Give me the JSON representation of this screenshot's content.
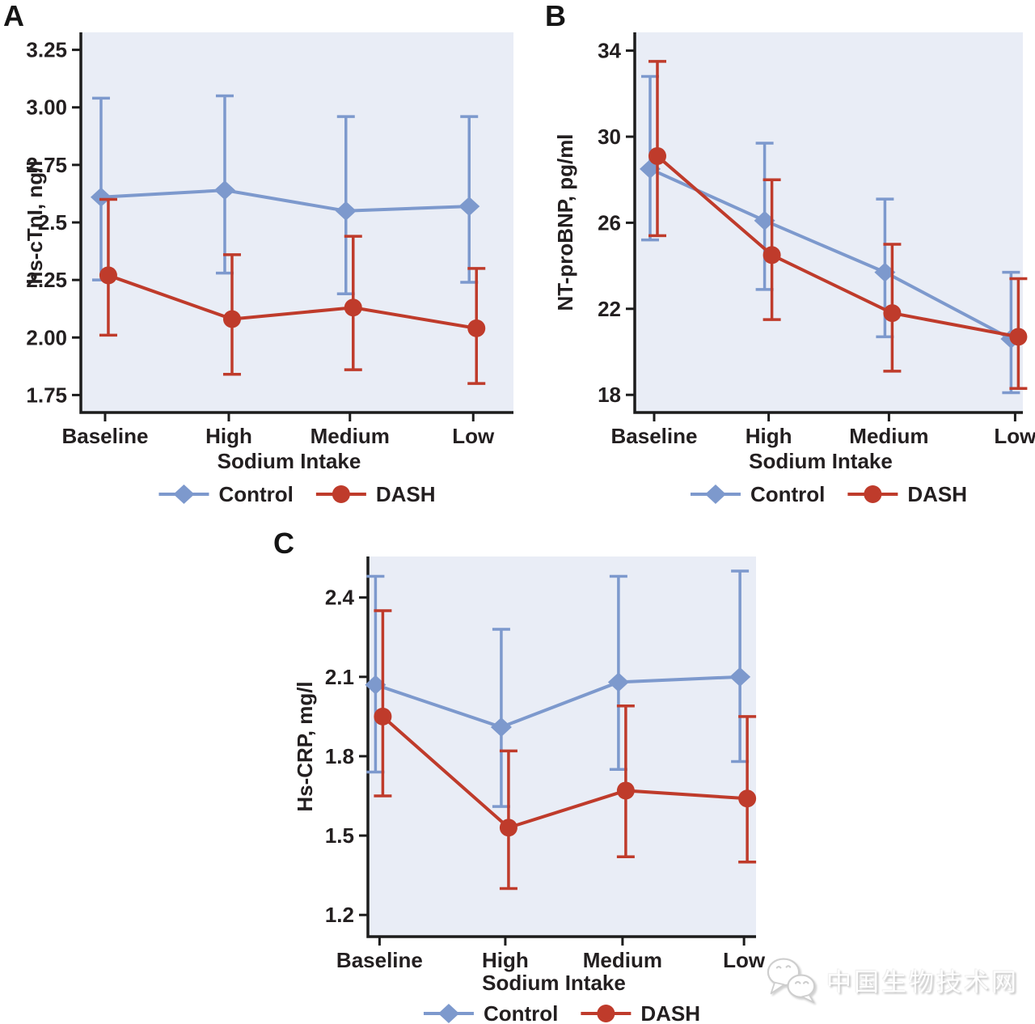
{
  "watermark": {
    "text": "中国生物技术网",
    "icon": "wechat-icon"
  },
  "colors": {
    "control": "#7d99cd",
    "dash": "#bf3b2b",
    "plot_bg": "#e9edf6",
    "axis": "#1c1c1c",
    "text": "#231f20"
  },
  "chart_data": [
    {
      "panel_label": "A",
      "type": "line",
      "ylabel": "hs-cTnI, ng/l",
      "xlabel": "Sodium Intake",
      "categories": [
        "Baseline",
        "High",
        "Medium",
        "Low"
      ],
      "yticks": [
        1.75,
        2.0,
        2.25,
        2.5,
        2.75,
        3.0,
        3.25
      ],
      "ytick_labels": [
        "1.75",
        "2.00",
        "2.25",
        "2.5",
        "2.75",
        "3.00",
        "3.25"
      ],
      "ylim": [
        1.674,
        3.326
      ],
      "grid": false,
      "legend_position": "bottom",
      "series": [
        {
          "name": "Control",
          "marker": "diamond",
          "color": "control",
          "values": [
            2.61,
            2.64,
            2.55,
            2.57
          ],
          "lower": [
            2.25,
            2.28,
            2.19,
            2.24
          ],
          "upper": [
            3.04,
            3.05,
            2.96,
            2.96
          ]
        },
        {
          "name": "DASH",
          "marker": "circle",
          "color": "dash",
          "values": [
            2.27,
            2.08,
            2.13,
            2.04
          ],
          "lower": [
            2.01,
            1.84,
            1.86,
            1.8
          ],
          "upper": [
            2.6,
            2.36,
            2.44,
            2.3
          ]
        }
      ]
    },
    {
      "panel_label": "B",
      "type": "line",
      "ylabel": "NT-proBNP, pg/ml",
      "xlabel": "Sodium Intake",
      "categories": [
        "Baseline",
        "High",
        "Medium",
        "Low"
      ],
      "yticks": [
        18,
        22,
        26,
        30,
        34
      ],
      "ytick_labels": [
        "18",
        "22",
        "26",
        "30",
        "34"
      ],
      "ylim": [
        17.18,
        34.85
      ],
      "grid": false,
      "legend_position": "bottom",
      "series": [
        {
          "name": "Control",
          "marker": "diamond",
          "color": "control",
          "values": [
            28.5,
            26.1,
            23.7,
            20.6
          ],
          "lower": [
            25.2,
            22.9,
            20.7,
            18.1
          ],
          "upper": [
            32.8,
            29.7,
            27.1,
            23.7
          ]
        },
        {
          "name": "DASH",
          "marker": "circle",
          "color": "dash",
          "values": [
            29.1,
            24.5,
            21.8,
            20.7
          ],
          "lower": [
            25.4,
            21.5,
            19.1,
            18.3
          ],
          "upper": [
            33.5,
            28.0,
            25.0,
            23.4
          ]
        }
      ]
    },
    {
      "panel_label": "C",
      "type": "line",
      "ylabel": "Hs-CRP, mg/l",
      "xlabel": "Sodium Intake",
      "categories": [
        "Baseline",
        "High",
        "Medium",
        "Low"
      ],
      "yticks": [
        1.2,
        1.5,
        1.8,
        2.1,
        2.4
      ],
      "ytick_labels": [
        "1.2",
        "1.5",
        "1.8",
        "2.1",
        "2.4"
      ],
      "ylim": [
        1.118,
        2.555
      ],
      "grid": false,
      "legend_position": "bottom",
      "series": [
        {
          "name": "Control",
          "marker": "diamond",
          "color": "control",
          "values": [
            2.07,
            1.91,
            2.08,
            2.1
          ],
          "lower": [
            1.74,
            1.61,
            1.75,
            1.78
          ],
          "upper": [
            2.48,
            2.28,
            2.48,
            2.5
          ]
        },
        {
          "name": "DASH",
          "marker": "circle",
          "color": "dash",
          "values": [
            1.95,
            1.53,
            1.67,
            1.64
          ],
          "lower": [
            1.65,
            1.3,
            1.42,
            1.4
          ],
          "upper": [
            2.35,
            1.82,
            1.99,
            1.95
          ]
        }
      ]
    }
  ]
}
